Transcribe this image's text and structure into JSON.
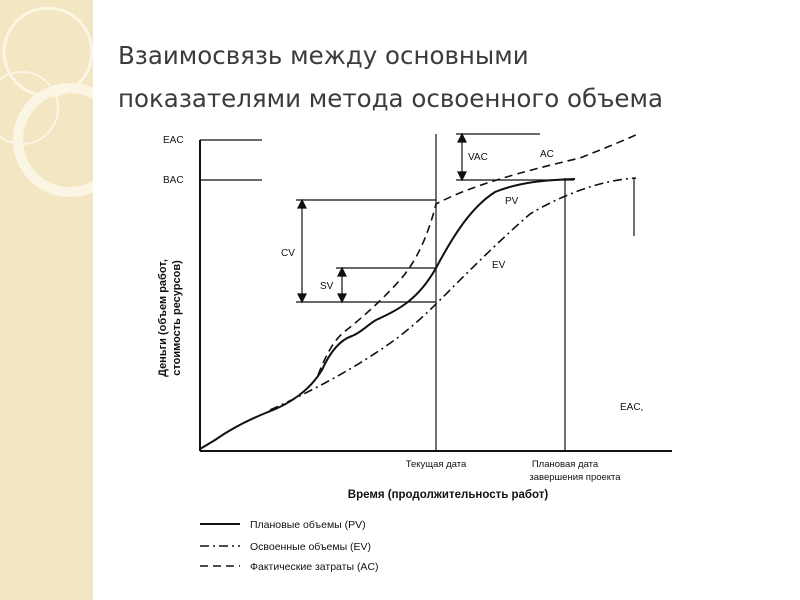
{
  "slide": {
    "title_line1": "Взаимосвязь между основными",
    "title_line2": "показателями метода освоенного объема"
  },
  "diagram": {
    "y_axis_label_line1": "Деньги (объем работ,",
    "y_axis_label_line2": "стоимость ресурсов)",
    "x_axis_label": "Время (продолжительность работ)",
    "y_tick_eac": "EAC",
    "y_tick_bac": "BAC",
    "x_tick_current_date": "Текущая дата",
    "x_tick_planned_end_line1": "Плановая дата",
    "x_tick_planned_end_line2": "завершения проекта",
    "label_vac": "VAC",
    "label_ac": "AC",
    "label_pv": "PV",
    "label_ev": "EV",
    "label_cv": "CV",
    "label_sv": "SV",
    "label_eac_end": "EAC,",
    "legend": [
      {
        "label": "Плановые объемы (PV)",
        "style": "solid"
      },
      {
        "label": "Освоенные объемы (EV)",
        "style": "dash-dot"
      },
      {
        "label": "Фактические затраты (AC)",
        "style": "dashed"
      }
    ]
  },
  "colors": {
    "side_panel": "#f3e6c2",
    "title_text": "#3b3b3b",
    "line": "#111111"
  }
}
